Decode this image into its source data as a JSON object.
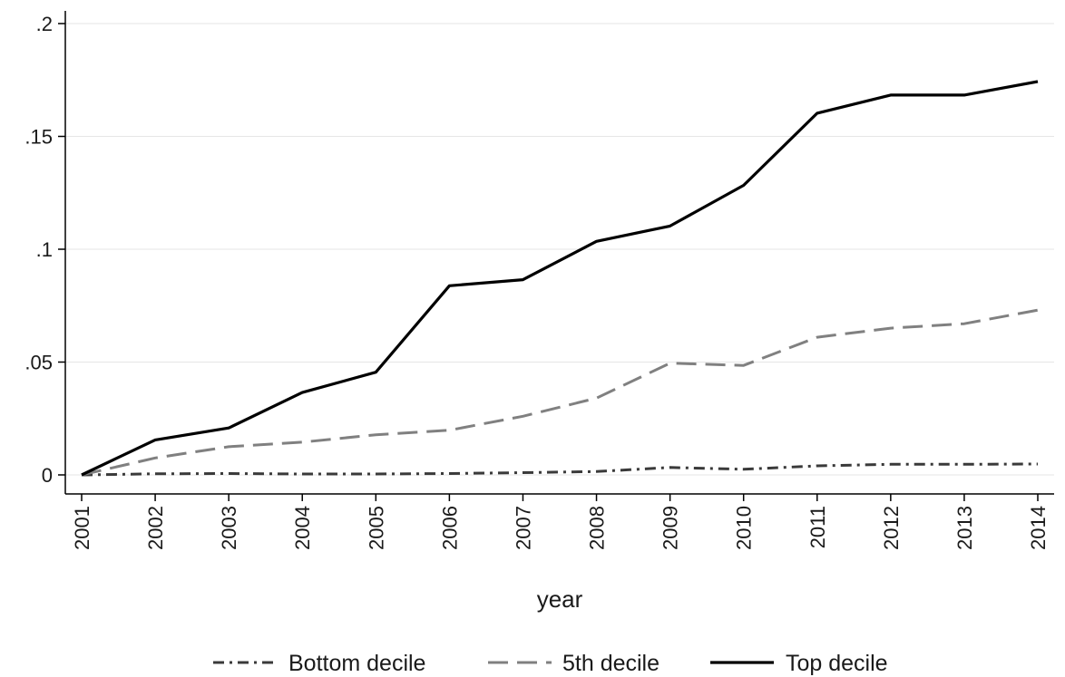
{
  "chart_data": {
    "type": "line",
    "title": "",
    "xlabel": "year",
    "ylabel": "",
    "x": [
      2001,
      2002,
      2003,
      2004,
      2005,
      2006,
      2007,
      2008,
      2009,
      2010,
      2011,
      2012,
      2013,
      2014
    ],
    "x_tick_labels": [
      "2001",
      "2002",
      "2003",
      "2004",
      "2005",
      "2006",
      "2007",
      "2008",
      "2009",
      "2010",
      "2011",
      "2012",
      "2013",
      "2014"
    ],
    "xlim": [
      2001,
      2014
    ],
    "ylim": [
      0,
      0.2
    ],
    "y_ticks": [
      0,
      0.05,
      0.1,
      0.15,
      0.2
    ],
    "y_tick_labels": [
      "0",
      ".05",
      ".1",
      ".15",
      ".2"
    ],
    "grid": "horizontal",
    "legend_position": "bottom",
    "series": [
      {
        "name": "Bottom decile",
        "style": "dash-dot",
        "color": "#3a3a3a",
        "values": [
          0,
          0.0005,
          0.0006,
          0.0004,
          0.0004,
          0.0006,
          0.001,
          0.0015,
          0.0033,
          0.0025,
          0.004,
          0.0047,
          0.0047,
          0.0048
        ]
      },
      {
        "name": "5th decile",
        "style": "long-dash",
        "color": "#808080",
        "values": [
          0,
          0.0075,
          0.0125,
          0.0145,
          0.0178,
          0.0198,
          0.026,
          0.034,
          0.0495,
          0.0485,
          0.061,
          0.065,
          0.067,
          0.073
        ]
      },
      {
        "name": "Top decile",
        "style": "solid",
        "color": "#000000",
        "values": [
          0,
          0.0155,
          0.0208,
          0.0365,
          0.0455,
          0.0838,
          0.0865,
          0.1035,
          0.1103,
          0.1283,
          0.1603,
          0.1683,
          0.1683,
          0.1743
        ]
      }
    ]
  }
}
